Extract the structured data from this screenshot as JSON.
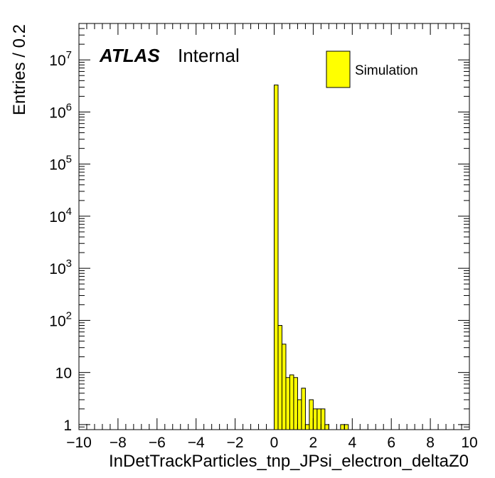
{
  "chart_data": {
    "type": "bar",
    "subtype": "histogram",
    "xlabel": "InDetTrackParticles_tnp_JPsi_electron_deltaZ0",
    "ylabel": "Entries / 0.2",
    "xlim": [
      -10,
      10
    ],
    "ylim": [
      0.8,
      50000000
    ],
    "yscale": "log",
    "bin_width": 0.2,
    "x_ticks": [
      -10,
      -8,
      -6,
      -4,
      -2,
      0,
      2,
      4,
      6,
      8,
      10
    ],
    "x_tick_labels": [
      "−10",
      "−8",
      "−6",
      "−4",
      "−2",
      "0",
      "2",
      "4",
      "6",
      "8",
      "10"
    ],
    "y_ticks": [
      1,
      10,
      100,
      1000,
      10000,
      100000,
      1000000,
      10000000
    ],
    "y_tick_labels": [
      {
        "base": "1",
        "exp": ""
      },
      {
        "base": "10",
        "exp": ""
      },
      {
        "base": "10",
        "exp": "2"
      },
      {
        "base": "10",
        "exp": "3"
      },
      {
        "base": "10",
        "exp": "4"
      },
      {
        "base": "10",
        "exp": "5"
      },
      {
        "base": "10",
        "exp": "6"
      },
      {
        "base": "10",
        "exp": "7"
      }
    ],
    "fill_color": "#ffff00",
    "line_color": "#000000",
    "bins": [
      {
        "x": 0.0,
        "value": 3300000
      },
      {
        "x": 0.2,
        "value": 80
      },
      {
        "x": 0.4,
        "value": 35
      },
      {
        "x": 0.6,
        "value": 8
      },
      {
        "x": 0.8,
        "value": 9
      },
      {
        "x": 1.0,
        "value": 8
      },
      {
        "x": 1.2,
        "value": 3
      },
      {
        "x": 1.4,
        "value": 5
      },
      {
        "x": 1.6,
        "value": 1
      },
      {
        "x": 1.8,
        "value": 3
      },
      {
        "x": 2.0,
        "value": 2
      },
      {
        "x": 2.2,
        "value": 2
      },
      {
        "x": 2.4,
        "value": 2
      },
      {
        "x": 2.6,
        "value": 1
      },
      {
        "x": 3.4,
        "value": 1
      },
      {
        "x": 3.6,
        "value": 1
      }
    ],
    "legend": {
      "position": "top-right",
      "entries": [
        "Simulation"
      ]
    },
    "annotations": {
      "experiment": "ATLAS",
      "status": "Internal"
    }
  }
}
